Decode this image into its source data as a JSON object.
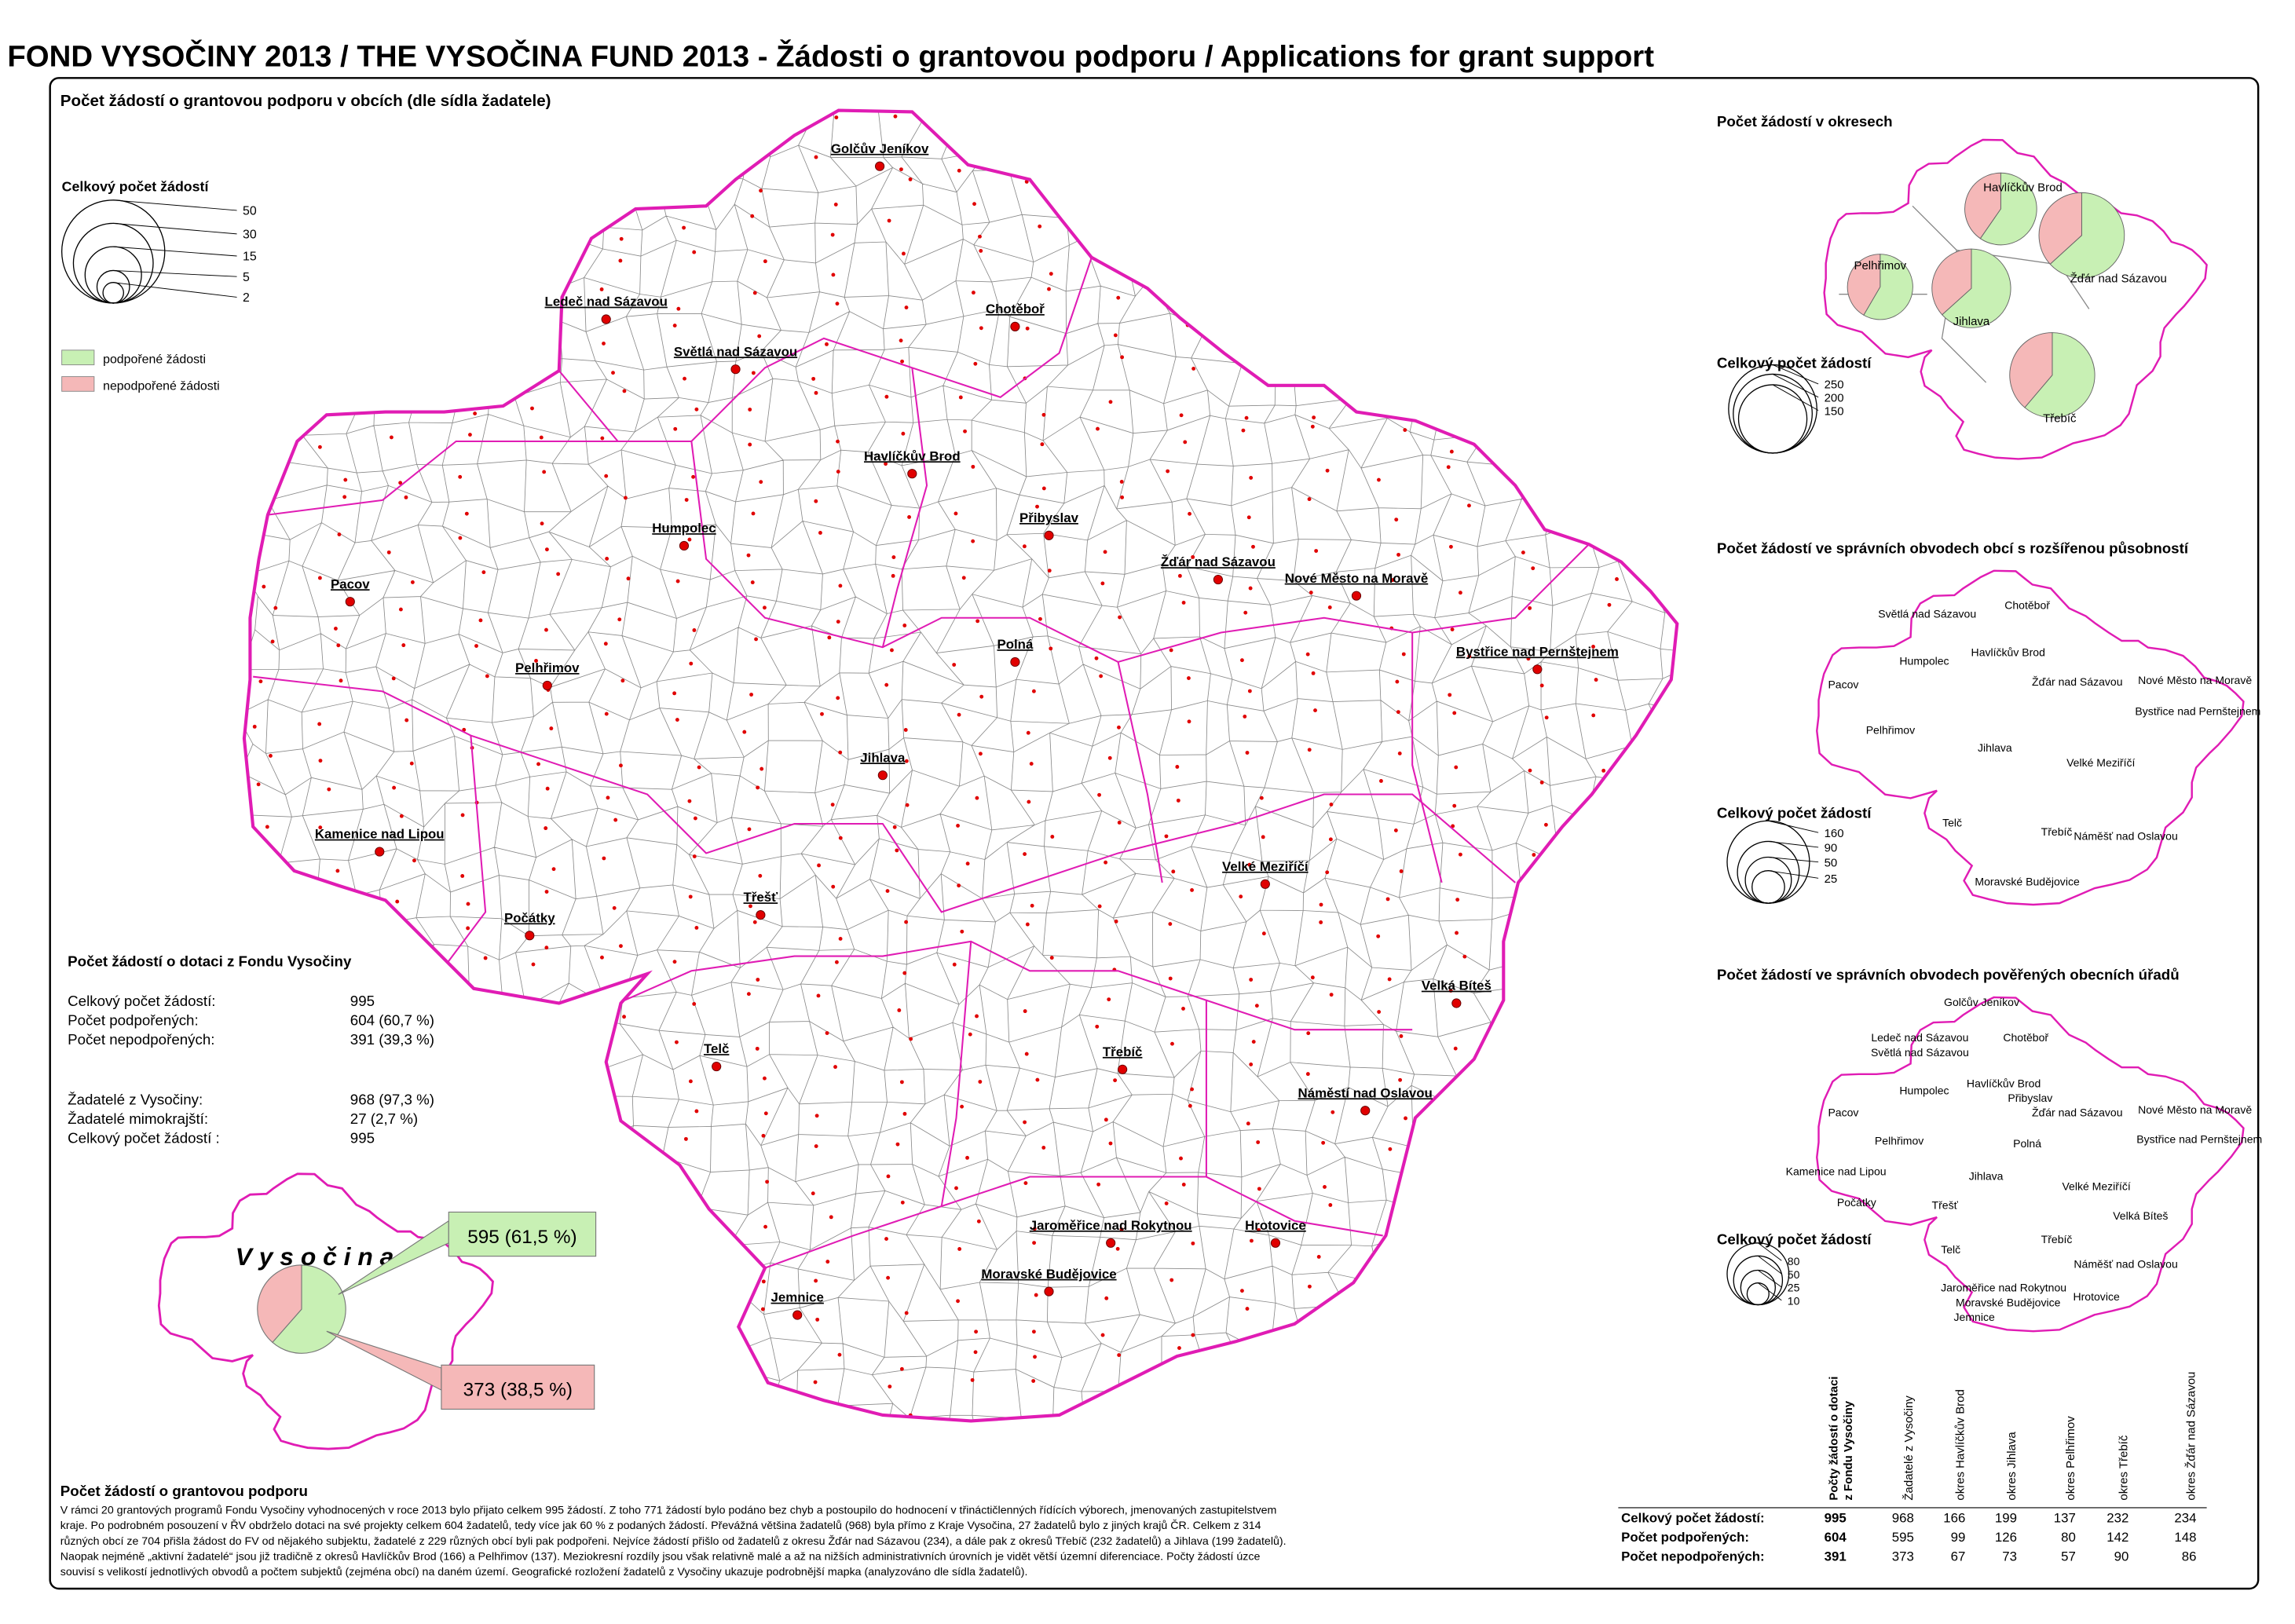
{
  "title": "FOND VYSOČINY 2013 / THE VYSOČINA FUND 2013 - Žádosti o grantovou podporu / Applications for grant support",
  "main_map": {
    "heading": "Počet žádostí o grantovou podporu v obcích (dle sídla žadatele)",
    "legend_heading": "Celkový počet žádostí",
    "legend_sizes": [
      50,
      30,
      15,
      5,
      2
    ],
    "legend_items": [
      {
        "label": "podpořené žádosti",
        "color": "#c8f0b4"
      },
      {
        "label": "nepodpořené žádosti",
        "color": "#f5b8b8"
      }
    ],
    "places": [
      "Golčův Jeníkov",
      "Ledeč nad Sázavou",
      "Světlá nad Sázavou",
      "Chotěboř",
      "Havlíčkův Brod",
      "Humpolec",
      "Přibyslav",
      "Pacov",
      "Žďár nad Sázavou",
      "Nové Město na Moravě",
      "Pelhřimov",
      "Bystřice nad Pernštejnem",
      "Polná",
      "Jihlava",
      "Kamenice nad Lipou",
      "Velké Meziříčí",
      "Třešť",
      "Počátky",
      "Velká Bíteš",
      "Telč",
      "Třebíč",
      "Náměstí nad Oslavou",
      "Jaroměřice nad Rokytnou",
      "Hrotovice",
      "Moravské Budějovice",
      "Jemnice"
    ]
  },
  "stats": {
    "heading": "Počet žádostí o dotaci z Fondu Vysočiny",
    "rows": [
      [
        "Celkový počet žádostí:",
        "995"
      ],
      [
        "Počet podpořených:",
        "604 (60,7 %)"
      ],
      [
        "Počet nepodpořených:",
        "391 (39,3 %)"
      ],
      [
        "Žadatelé z Vysočiny:",
        "968 (97,3 %)"
      ],
      [
        "Žadatelé mimokrajští:",
        "27   (2,7 %)"
      ],
      [
        "Celkový počet žádostí :",
        "995"
      ]
    ]
  },
  "inset": {
    "label": "V y s o č i n a",
    "values": [
      595,
      373
    ],
    "value_labels": [
      "595 (61,5 %)",
      "373 (38,5 %)"
    ],
    "colors": [
      "#c8f0b4",
      "#f5b8b8"
    ]
  },
  "text": {
    "heading": "Počet žádostí o grantovou podporu",
    "lines": [
      "V rámci 20 grantových programů Fondu Vysočiny vyhodnocených v roce 2013 bylo přijato celkem 995 žádostí. Z toho 771 žádostí bylo podáno bez chyb a postoupilo do hodnocení v třináctičlenných řídících výborech, jmenovaných zastupitelstvem",
      "kraje. Po podrobném posouzení v ŘV obdrželo dotaci na své projekty celkem 604 žadatelů, tedy více jak 60 % z podaných žádostí. Převážná většina žadatelů (968) byla přímo z Kraje Vysočina, 27 žadatelů bylo z jiných krajů ČR. Celkem z 314",
      "různých obcí ze 704 přišla žádost do FV od nějakého subjektu, žadatelé z 229 různých obcí byli pak podpořeni. Nejvíce žádostí přišlo od žadatelů z okresu Žďár nad Sázavou (234), a dále pak z okresů Třebíč (232 žadatelů) a Jihlava (199 žadatelů).",
      "Naopak nejméně „aktivní žadatelé“ jsou již tradičně z okresů Havlíčkův Brod (166) a Pelhřimov (137). Meziokresní rozdíly jsou však relativně malé a až na nižších administrativních úrovních je vidět větší územní diferenciace. Počty žádostí úzce",
      "souvisí s velikostí jednotlivých obvodů a počtem subjektů (zejména obcí) na daném území. Geografické rozložení žadatelů z Vysočiny ukazuje podrobnější mapka (analyzováno dle sídla žadatelů)."
    ]
  },
  "okresy_map": {
    "heading": "Počet žádostí v okresech",
    "legend_heading": "Celkový počet žádostí",
    "legend_sizes": [
      250,
      200,
      150
    ],
    "places": [
      "Havlíčkův Brod",
      "Jihlava",
      "Pelhřimov",
      "Třebíč",
      "Žďár nad Sázavou"
    ]
  },
  "orp_map": {
    "heading": "Počet žádostí ve správních obvodech obcí s rozšířenou působností",
    "legend_heading": "Celkový počet žádostí",
    "legend_sizes": [
      160,
      90,
      50,
      25
    ],
    "places": [
      "Světlá nad Sázavou",
      "Chotěboř",
      "Havlíčkův Brod",
      "Humpolec",
      "Pacov",
      "Žďár nad Sázavou",
      "Nové Město na Moravě",
      "Bystřice nad Pernštejnem",
      "Pelhřimov",
      "Jihlava",
      "Velké Meziříčí",
      "Telč",
      "Třebíč",
      "Náměšť nad Oslavou",
      "Moravské Budějovice"
    ]
  },
  "pou_map": {
    "heading": "Počet žádostí ve správních obvodech pověřených obecních úřadů",
    "legend_heading": "Celkový počet žádostí",
    "legend_sizes": [
      80,
      50,
      25,
      10
    ],
    "places": [
      "Golčův Jeníkov",
      "Ledeč nad Sázavou",
      "Světlá nad Sázavou",
      "Chotěboř",
      "Humpolec",
      "Havlíčkův Brod",
      "Přibyslav",
      "Pacov",
      "Žďár nad Sázavou",
      "Nové Město na Moravě",
      "Bystřice nad Pernštejnem",
      "Pelhřimov",
      "Polná",
      "Jihlava",
      "Kamenice nad Lipou",
      "Velké Meziříčí",
      "Počátky",
      "Třešť",
      "Velká Bíteš",
      "Telč",
      "Třebíč",
      "Náměšť nad Oslavou",
      "Jaroměřice nad Rokytnou",
      "Hrotovice",
      "Moravské Budějovice",
      "Jemnice"
    ]
  },
  "table": {
    "column_headers": [
      [
        "Počty žádostí o dotaci",
        "z Fondu Vysočiny"
      ],
      [
        "Žadatelé z Vysočiny"
      ],
      [
        "okres Havlíčkův Brod"
      ],
      [
        "okres Jihlava"
      ],
      [
        "okres Pelhřimov"
      ],
      [
        "okres Třebíč"
      ],
      [
        "okres Žďár nad Sázavou"
      ]
    ],
    "rows": [
      {
        "label": "Celkový počet žádostí:",
        "values": [
          995,
          968,
          166,
          199,
          137,
          232,
          234
        ]
      },
      {
        "label": "Počet podpořených:",
        "values": [
          604,
          595,
          99,
          126,
          80,
          142,
          148
        ]
      },
      {
        "label": "Počet nepodpořených:",
        "values": [
          391,
          373,
          67,
          73,
          57,
          90,
          86
        ]
      }
    ]
  }
}
